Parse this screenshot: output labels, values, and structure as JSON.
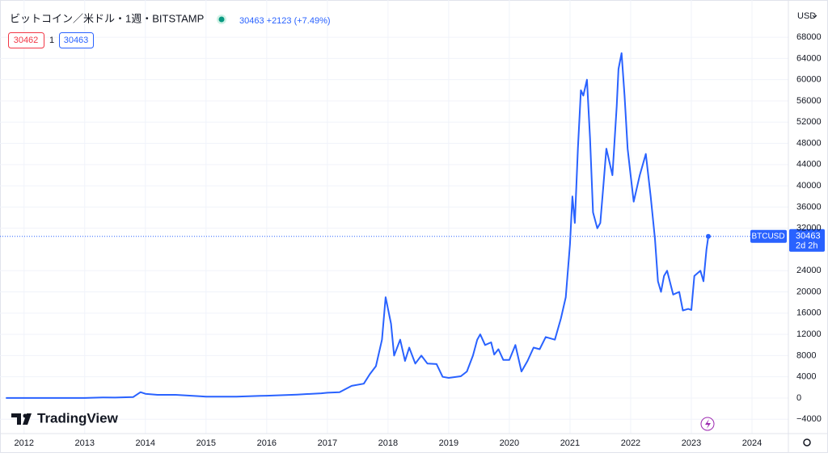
{
  "chart_data": {
    "type": "line",
    "title": "ビットコイン／米ドル・1週・BITSTAMP",
    "quote": "30463 +2123 (+7.49%)",
    "bid": "30462",
    "spread": "1",
    "ask": "30463",
    "currency": "USD",
    "price_tag": {
      "symbol": "BTCUSD",
      "price": "30463",
      "countdown": "2d 2h"
    },
    "brand": "TradingView",
    "x": [
      2011.7,
      2012.0,
      2012.5,
      2013.0,
      2013.3,
      2013.5,
      2013.8,
      2013.92,
      2014.0,
      2014.2,
      2014.5,
      2014.9,
      2015.0,
      2015.5,
      2015.9,
      2016.0,
      2016.5,
      2016.9,
      2017.0,
      2017.2,
      2017.4,
      2017.6,
      2017.7,
      2017.8,
      2017.9,
      2017.96,
      2018.05,
      2018.1,
      2018.2,
      2018.28,
      2018.35,
      2018.45,
      2018.55,
      2018.65,
      2018.8,
      2018.9,
      2019.0,
      2019.2,
      2019.3,
      2019.4,
      2019.47,
      2019.52,
      2019.6,
      2019.7,
      2019.75,
      2019.82,
      2019.9,
      2020.0,
      2020.1,
      2020.2,
      2020.3,
      2020.4,
      2020.5,
      2020.6,
      2020.75,
      2020.85,
      2020.93,
      2021.0,
      2021.04,
      2021.08,
      2021.13,
      2021.18,
      2021.22,
      2021.28,
      2021.33,
      2021.38,
      2021.45,
      2021.5,
      2021.55,
      2021.6,
      2021.7,
      2021.77,
      2021.8,
      2021.85,
      2021.9,
      2021.95,
      2022.0,
      2022.05,
      2022.15,
      2022.25,
      2022.33,
      2022.4,
      2022.45,
      2022.5,
      2022.55,
      2022.6,
      2022.7,
      2022.8,
      2022.86,
      2022.95,
      2023.0,
      2023.05,
      2023.15,
      2023.2,
      2023.25,
      2023.28
    ],
    "series": [
      {
        "name": "BTCUSD",
        "color": "#2962ff",
        "values": [
          5,
          5,
          7,
          13,
          120,
          90,
          200,
          1100,
          800,
          600,
          600,
          350,
          250,
          250,
          400,
          430,
          650,
          900,
          1000,
          1100,
          2300,
          2700,
          4500,
          6000,
          11000,
          19000,
          14000,
          8000,
          11000,
          7000,
          9500,
          6500,
          8000,
          6500,
          6400,
          4000,
          3800,
          4100,
          5000,
          8000,
          11000,
          12000,
          10000,
          10500,
          8200,
          9200,
          7200,
          7200,
          10000,
          5000,
          7000,
          9500,
          9200,
          11500,
          11000,
          15000,
          19000,
          29000,
          38000,
          33000,
          47000,
          58000,
          57000,
          60000,
          49000,
          35000,
          32000,
          33000,
          40000,
          47000,
          42000,
          55000,
          62000,
          65000,
          57000,
          47000,
          42000,
          37000,
          42000,
          46000,
          38000,
          30000,
          22000,
          20000,
          23000,
          24000,
          19500,
          20000,
          16500,
          16800,
          16600,
          23000,
          24000,
          22000,
          28000,
          30463
        ]
      }
    ],
    "xlim": [
      2011.67,
      2024.6
    ],
    "xticks": [
      2012,
      2013,
      2014,
      2015,
      2016,
      2017,
      2018,
      2019,
      2020,
      2021,
      2022,
      2023,
      2024
    ],
    "ylim": [
      -6700,
      73800
    ],
    "yticks": [
      {
        "value": -4000,
        "label": "−4000"
      },
      0,
      4000,
      8000,
      12000,
      16000,
      20000,
      24000,
      32000,
      36000,
      40000,
      44000,
      48000,
      52000,
      56000,
      60000,
      64000,
      68000
    ],
    "grid": true
  }
}
